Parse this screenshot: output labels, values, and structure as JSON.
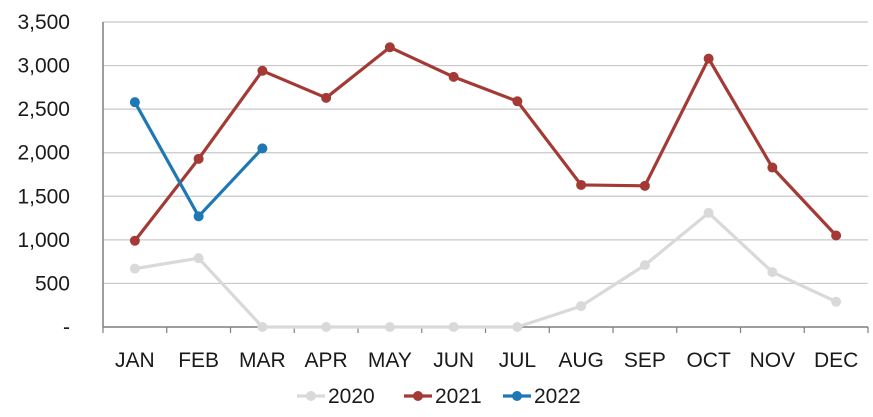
{
  "chart_data": {
    "type": "line",
    "categories": [
      "JAN",
      "FEB",
      "MAR",
      "APR",
      "MAY",
      "JUN",
      "JUL",
      "AUG",
      "SEP",
      "OCT",
      "NOV",
      "DEC"
    ],
    "ylim": [
      0,
      3500
    ],
    "yticks": [
      0,
      500,
      1000,
      1500,
      2000,
      2500,
      3000,
      3500
    ],
    "ytick_labels": [
      "-",
      "500",
      "1,000",
      "1,500",
      "2,000",
      "2,500",
      "3,000",
      "3,500"
    ],
    "grid": true,
    "legend_position": "bottom",
    "series": [
      {
        "name": "2020",
        "color": "#d9d9d9",
        "values": [
          670,
          790,
          0,
          0,
          0,
          0,
          0,
          240,
          710,
          1310,
          630,
          290
        ]
      },
      {
        "name": "2021",
        "color": "#a33a35",
        "values": [
          990,
          1930,
          2940,
          2630,
          3210,
          2870,
          2590,
          1630,
          1620,
          3080,
          1830,
          1050
        ]
      },
      {
        "name": "2022",
        "color": "#1f78b4",
        "values": [
          2580,
          1270,
          2050,
          null,
          null,
          null,
          null,
          null,
          null,
          null,
          null,
          null
        ]
      }
    ]
  }
}
